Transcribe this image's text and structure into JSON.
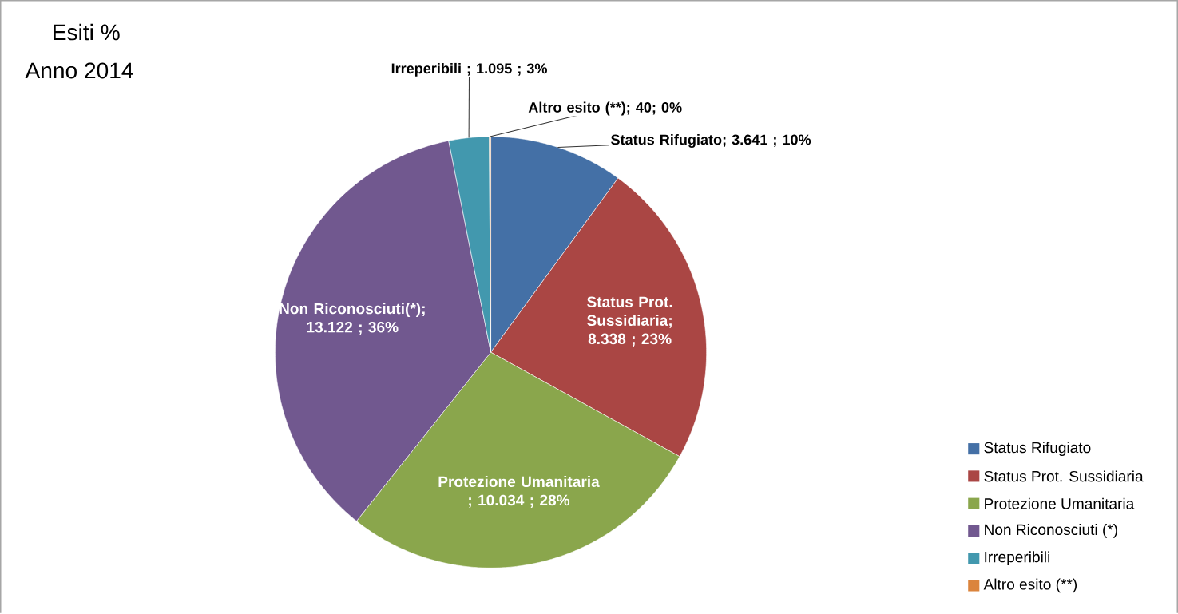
{
  "chart_data": {
    "type": "pie",
    "title": "Esiti %",
    "subtitle": "Anno 2014",
    "categories": [
      "Status Rifugiato",
      "Status Prot. Sussidiaria",
      "Protezione Umanitaria",
      "Non Riconosciuti (*)",
      "Irreperibili",
      "Altro esito (**)"
    ],
    "values": [
      3641,
      8338,
      10034,
      13122,
      1095,
      40
    ],
    "colors": [
      "#4470a6",
      "#aa4644",
      "#8aa64c",
      "#71588f",
      "#4298ae",
      "#db843d"
    ],
    "value_labels": [
      "Status Rifugiato; 3.641 ; 10%",
      "Status Prot. Sussidiaria; 8.338 ; 23%",
      "Protezione Umanitaria ; 10.034 ; 28%",
      "Non Riconosciuti(*); 13.122 ; 36%",
      "Irreperibili ; 1.095 ; 3%",
      "Altro esito (**); 40; 0%"
    ],
    "legend": "bottom right"
  }
}
